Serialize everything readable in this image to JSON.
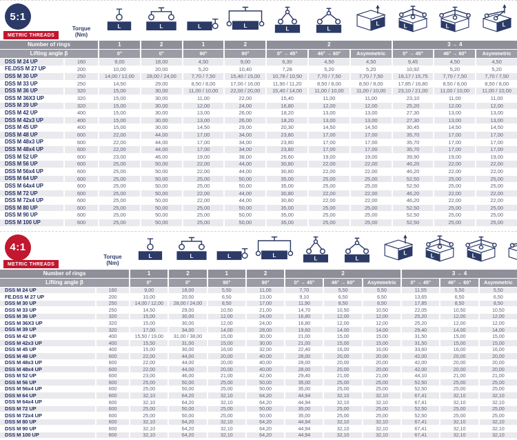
{
  "icon_bar_label": "L",
  "colors": {
    "navy": "#2b3a67",
    "red": "#c1172f",
    "band_dark": "#8e8f99",
    "band_light": "#9b9ca5",
    "row_stripe": "#e9e9ee"
  },
  "columns": {
    "rings_label": "Number of rings",
    "angle_label": "Lifting angle β",
    "rings": [
      {
        "text": "1",
        "span": 1
      },
      {
        "text": "2",
        "span": 1
      },
      {
        "text": "1",
        "span": 1
      },
      {
        "text": "2",
        "span": 1
      },
      {
        "text": "2",
        "span": 3
      },
      {
        "text": "3 → 4",
        "span": 3
      }
    ],
    "angles": [
      "0°",
      "0°",
      "90°",
      "90°",
      "0° → 45°",
      "46° → 60°",
      "Asymmetric",
      "0° → 45°",
      "46° → 60°",
      "Asymmetric"
    ],
    "icons": [
      {
        "name": "one-ring-0deg-icon"
      },
      {
        "name": "two-rings-0deg-icon"
      },
      {
        "name": "one-ring-90deg-icon"
      },
      {
        "name": "two-rings-90deg-icon"
      },
      {
        "name": "sling-2leg-45deg-icon"
      },
      {
        "name": "sling-2leg-60deg-icon"
      },
      {
        "name": "asymmetric-2leg-icon"
      },
      {
        "name": "sling-34leg-45deg-icon"
      },
      {
        "name": "sling-34leg-60deg-icon"
      },
      {
        "name": "asymmetric-34leg-icon"
      }
    ]
  },
  "tables": [
    {
      "ratio": "5:1",
      "badge": "METRIC THREADS",
      "torque_label": "Torque\n(Nm)",
      "rows": [
        {
          "name": "DSS M 24 UP",
          "torque": "160",
          "values": [
            "9,00",
            "18,00",
            "4,50",
            "9,00",
            "6,30",
            "4,50",
            "4,50",
            "9,45",
            "4,50",
            "4,50"
          ]
        },
        {
          "name": "FE.DSS M 27 UP",
          "torque": "200",
          "values": [
            "10,00",
            "20,00",
            "5,20",
            "10,40",
            "7,28",
            "5,20",
            "5,20",
            "10,92",
            "5,20",
            "5,20"
          ]
        },
        {
          "name": "DSS M 30 UP",
          "torque": "250",
          "values": [
            "14,00 / 12,00",
            "28,00 / 24,00",
            "7,70 / 7,50",
            "15,40 / 15,00",
            "10,78 / 10,50",
            "7,70 / 7,50",
            "7,70 / 7,50",
            "16,17 / 15,75",
            "7,70 / 7,50",
            "7,70 / 7,50"
          ]
        },
        {
          "name": "DSS M 33 UP",
          "torque": "250",
          "values": [
            "14,50",
            "29,00",
            "8,50 / 8,00",
            "17,00 / 16,00",
            "11,90 / 11,20",
            "8,50 / 8,00",
            "8,50 / 8,00",
            "17,85 / 16,80",
            "8,50 / 8,00",
            "8,50 / 8,00"
          ]
        },
        {
          "name": "DSS M 36 UP",
          "torque": "320",
          "values": [
            "15,00",
            "30,00",
            "11,00 / 10,00",
            "22,00 / 20,00",
            "15,40 / 14,00",
            "11,00 / 10,00",
            "11,00 / 10,00",
            "23,10 / 21,00",
            "11,00 / 10,00",
            "11,00 / 10,00"
          ]
        },
        {
          "name": "DSS M 36X3 UP",
          "torque": "320",
          "values": [
            "15,00",
            "30,00",
            "11,00",
            "22,00",
            "15,40",
            "11,00",
            "11,00",
            "23,10",
            "11,00",
            "11,00"
          ]
        },
        {
          "name": "DSS M 39 UP",
          "torque": "320",
          "values": [
            "15,00",
            "30,00",
            "12,00",
            "24,00",
            "16,80",
            "12,00",
            "12,00",
            "25,20",
            "12,00",
            "12,00"
          ]
        },
        {
          "name": "DSS M 42 UP",
          "torque": "400",
          "values": [
            "15,00",
            "30,00",
            "13,00",
            "26,00",
            "18,20",
            "13,00",
            "13,00",
            "27,30",
            "13,00",
            "13,00"
          ]
        },
        {
          "name": "DSS M 42x3 UP",
          "torque": "400",
          "values": [
            "15,00",
            "30,00",
            "13,00",
            "26,00",
            "18,20",
            "13,00",
            "13,00",
            "27,30",
            "13,00",
            "13,00"
          ]
        },
        {
          "name": "DSS M 45 UP",
          "torque": "400",
          "values": [
            "15,00",
            "30,00",
            "14,50",
            "29,00",
            "20,30",
            "14,50",
            "14,50",
            "30,45",
            "14,50",
            "14,50"
          ]
        },
        {
          "name": "DSS M 48 UP",
          "torque": "600",
          "values": [
            "22,00",
            "44,00",
            "17,00",
            "34,00",
            "23,80",
            "17,00",
            "17,00",
            "35,70",
            "17,00",
            "17,00"
          ]
        },
        {
          "name": "DSS M 48x3 UP",
          "torque": "600",
          "values": [
            "22,00",
            "44,00",
            "17,00",
            "34,00",
            "23,80",
            "17,00",
            "17,00",
            "35,70",
            "17,00",
            "17,00"
          ]
        },
        {
          "name": "DSS M 48x4 UP",
          "torque": "600",
          "values": [
            "22,00",
            "44,00",
            "17,00",
            "34,00",
            "23,80",
            "17,00",
            "17,00",
            "35,70",
            "17,00",
            "17,00"
          ]
        },
        {
          "name": "DSS M 52 UP",
          "torque": "600",
          "values": [
            "23,00",
            "46,00",
            "19,00",
            "38,00",
            "26,60",
            "19,00",
            "19,00",
            "39,90",
            "19,00",
            "19,00"
          ]
        },
        {
          "name": "DSS M 56 UP",
          "torque": "600",
          "values": [
            "25,00",
            "50,00",
            "22,00",
            "44,00",
            "30,80",
            "22,00",
            "22,00",
            "46,20",
            "22,00",
            "22,00"
          ]
        },
        {
          "name": "DSS M 56x4 UP",
          "torque": "600",
          "values": [
            "25,00",
            "50,00",
            "22,00",
            "44,00",
            "30,80",
            "22,00",
            "22,00",
            "46,20",
            "22,00",
            "22,00"
          ]
        },
        {
          "name": "DSS M 64 UP",
          "torque": "600",
          "values": [
            "25,00",
            "50,00",
            "25,00",
            "50,00",
            "35,00",
            "25,00",
            "25,00",
            "52,50",
            "25,00",
            "25,00"
          ]
        },
        {
          "name": "DSS M 64x4 UP",
          "torque": "600",
          "values": [
            "25,00",
            "50,00",
            "25,00",
            "50,00",
            "35,00",
            "25,00",
            "25,00",
            "52,50",
            "25,00",
            "25,00"
          ]
        },
        {
          "name": "DSS M 72 UP",
          "torque": "600",
          "values": [
            "25,00",
            "50,00",
            "22,00",
            "44,00",
            "30,80",
            "22,00",
            "22,00",
            "46,20",
            "22,00",
            "22,00"
          ]
        },
        {
          "name": "DSS M 72x4 UP",
          "torque": "600",
          "values": [
            "25,00",
            "50,00",
            "22,00",
            "44,00",
            "30,80",
            "22,00",
            "22,00",
            "46,20",
            "22,00",
            "22,00"
          ]
        },
        {
          "name": "DSS M 80 UP",
          "torque": "600",
          "values": [
            "25,00",
            "50,00",
            "25,00",
            "50,00",
            "35,00",
            "25,00",
            "25,00",
            "52,50",
            "25,00",
            "25,00"
          ]
        },
        {
          "name": "DSS M 90 UP",
          "torque": "600",
          "values": [
            "25,00",
            "50,00",
            "25,00",
            "50,00",
            "35,00",
            "25,00",
            "25,00",
            "52,50",
            "25,00",
            "25,00"
          ]
        },
        {
          "name": "DSS M 100 UP",
          "torque": "600",
          "values": [
            "25,00",
            "50,00",
            "25,00",
            "50,00",
            "35,00",
            "25,00",
            "25,00",
            "52,50",
            "25,00",
            "25,00"
          ]
        }
      ]
    },
    {
      "ratio": "4:1",
      "badge": "METRIC THREADS",
      "torque_label": "Torque\n(Nm)",
      "rows": [
        {
          "name": "DSS M 24 UP",
          "torque": "160",
          "values": [
            "9,00",
            "18,00",
            "5,50",
            "11,00",
            "7,70",
            "5,50",
            "5,50",
            "11,55",
            "5,50",
            "5,50"
          ]
        },
        {
          "name": "FE.DSS M 27 UP",
          "torque": "200",
          "values": [
            "10,00",
            "20,00",
            "6,50",
            "13,00",
            "9,10",
            "6,50",
            "6,50",
            "13,65",
            "6,50",
            "6,50"
          ]
        },
        {
          "name": "DSS M 30 UP",
          "torque": "250",
          "values": [
            "14,00 / 12,00",
            "28,00 / 24,00",
            "8,50",
            "17,00",
            "11,90",
            "8,50",
            "8,50",
            "17,85",
            "8,50",
            "8,50"
          ]
        },
        {
          "name": "DSS M 33 UP",
          "torque": "250",
          "values": [
            "14,50",
            "29,00",
            "10,50",
            "21,00",
            "14,70",
            "10,50",
            "10,50",
            "22,05",
            "10,50",
            "10,50"
          ]
        },
        {
          "name": "DSS M 36 UP",
          "torque": "320",
          "values": [
            "15,00",
            "30,00",
            "12,00",
            "24,00",
            "16,80",
            "12,00",
            "12,00",
            "25,20",
            "12,00",
            "12,00"
          ]
        },
        {
          "name": "DSS M 36X3 UP",
          "torque": "320",
          "values": [
            "15,00",
            "30,00",
            "12,00",
            "24,00",
            "16,80",
            "12,00",
            "12,00",
            "25,20",
            "12,00",
            "12,00"
          ]
        },
        {
          "name": "DSS M 39 UP",
          "torque": "320",
          "values": [
            "17,00",
            "34,00",
            "14,00",
            "28,00",
            "19,60",
            "14,00",
            "14,00",
            "29,40",
            "14,00",
            "14,00"
          ]
        },
        {
          "name": "DSS M 42 UP",
          "torque": "400",
          "values": [
            "15,50 / 19,00",
            "31,00 / 38,00",
            "15,00",
            "30,00",
            "21,00",
            "15,00",
            "15,00",
            "31,50",
            "15,00",
            "15,00"
          ]
        },
        {
          "name": "DSS M 42x3 UP",
          "torque": "400",
          "values": [
            "15,50",
            "31,00",
            "15,00",
            "30,00",
            "21,00",
            "15,00",
            "15,00",
            "31,50",
            "15,00",
            "15,00"
          ]
        },
        {
          "name": "DSS M 45 UP",
          "torque": "400",
          "values": [
            "15,00",
            "30,00",
            "16,00",
            "32,00",
            "22,40",
            "16,00",
            "16,00",
            "33,60",
            "16,00",
            "16,00"
          ]
        },
        {
          "name": "DSS M 48 UP",
          "torque": "600",
          "values": [
            "22,00",
            "44,00",
            "20,00",
            "40,00",
            "28,00",
            "20,00",
            "20,00",
            "42,00",
            "20,00",
            "20,00"
          ]
        },
        {
          "name": "DSS M 48x3 UP",
          "torque": "600",
          "values": [
            "22,00",
            "44,00",
            "20,00",
            "40,00",
            "28,00",
            "20,00",
            "20,00",
            "42,00",
            "20,00",
            "20,00"
          ]
        },
        {
          "name": "DSS M 48x4 UP",
          "torque": "600",
          "values": [
            "22,00",
            "44,00",
            "20,00",
            "40,00",
            "28,00",
            "20,00",
            "20,00",
            "42,00",
            "20,00",
            "20,00"
          ]
        },
        {
          "name": "DSS M 52 UP",
          "torque": "600",
          "values": [
            "23,00",
            "46,00",
            "21,00",
            "42,00",
            "29,40",
            "21,00",
            "21,00",
            "44,10",
            "21,00",
            "21,00"
          ]
        },
        {
          "name": "DSS M 56 UP",
          "torque": "600",
          "values": [
            "25,00",
            "50,00",
            "25,00",
            "50,00",
            "35,00",
            "25,00",
            "25,00",
            "52,50",
            "25,00",
            "25,00"
          ]
        },
        {
          "name": "DSS M 56x4 UP",
          "torque": "600",
          "values": [
            "25,00",
            "50,00",
            "25,00",
            "50,00",
            "35,00",
            "25,00",
            "25,00",
            "52,50",
            "25,00",
            "25,00"
          ]
        },
        {
          "name": "DSS M 64 UP",
          "torque": "600",
          "values": [
            "32,10",
            "64,20",
            "32,10",
            "64,20",
            "44,94",
            "32,10",
            "32,10",
            "67,41",
            "32,10",
            "32,10"
          ]
        },
        {
          "name": "DSS M 64x4 UP",
          "torque": "600",
          "values": [
            "32,10",
            "64,20",
            "32,10",
            "64,20",
            "44,94",
            "32,10",
            "32,10",
            "67,41",
            "32,10",
            "32,10"
          ]
        },
        {
          "name": "DSS M 72 UP",
          "torque": "600",
          "values": [
            "25,00",
            "50,00",
            "25,00",
            "50,00",
            "35,00",
            "25,00",
            "25,00",
            "52,50",
            "25,00",
            "25,00"
          ]
        },
        {
          "name": "DSS M 72x4 UP",
          "torque": "600",
          "values": [
            "25,00",
            "50,00",
            "25,00",
            "50,00",
            "35,00",
            "25,00",
            "25,00",
            "52,50",
            "25,00",
            "25,00"
          ]
        },
        {
          "name": "DSS M 80 UP",
          "torque": "600",
          "values": [
            "32,10",
            "64,20",
            "32,10",
            "64,20",
            "44,94",
            "32,10",
            "32,10",
            "67,41",
            "32,10",
            "32,10"
          ]
        },
        {
          "name": "DSS M 90 UP",
          "torque": "600",
          "values": [
            "32,10",
            "64,20",
            "32,10",
            "64,20",
            "44,94",
            "32,10",
            "32,10",
            "67,41",
            "32,10",
            "32,10"
          ]
        },
        {
          "name": "DSS M 100 UP",
          "torque": "600",
          "values": [
            "32,10",
            "64,20",
            "32,10",
            "64,20",
            "44,94",
            "32,10",
            "32,10",
            "67,41",
            "32,10",
            "32,10"
          ]
        }
      ]
    }
  ]
}
